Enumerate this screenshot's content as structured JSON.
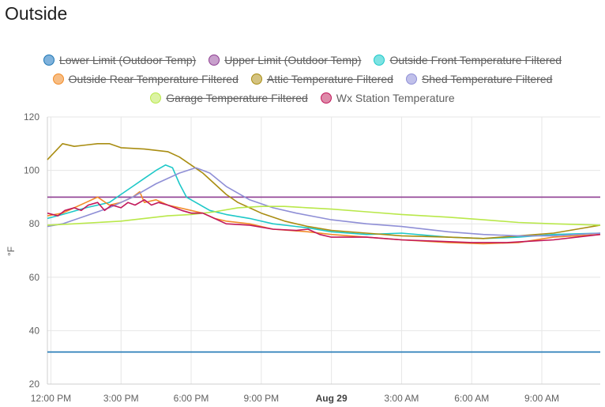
{
  "card": {
    "title": "Outside"
  },
  "chart_data": {
    "type": "line",
    "title": "Outside",
    "ylabel": "°F",
    "xlabel": "",
    "ylim": [
      20,
      120
    ],
    "y_ticks": [
      20,
      40,
      60,
      80,
      100,
      120
    ],
    "x_ticks": [
      {
        "label": "12:00 PM",
        "hour": 0,
        "bold": false
      },
      {
        "label": "3:00 PM",
        "hour": 3,
        "bold": false
      },
      {
        "label": "6:00 PM",
        "hour": 6,
        "bold": false
      },
      {
        "label": "9:00 PM",
        "hour": 9,
        "bold": false
      },
      {
        "label": "Aug 29",
        "hour": 12,
        "bold": true
      },
      {
        "label": "3:00 AM",
        "hour": 15,
        "bold": false
      },
      {
        "label": "6:00 AM",
        "hour": 18,
        "bold": false
      },
      {
        "label": "9:00 AM",
        "hour": 21,
        "bold": false
      }
    ],
    "x_range_hours": [
      -0.15,
      23.5
    ],
    "grid": true,
    "legend_position": "top",
    "series": [
      {
        "name": "Lower Limit (Outdoor Temp)",
        "color": "#1f77b4",
        "fill": "#7fb2dc",
        "hidden": true,
        "points": [
          [
            -0.15,
            32
          ],
          [
            23.5,
            32
          ]
        ]
      },
      {
        "name": "Upper Limit (Outdoor Temp)",
        "color": "#8e3d91",
        "fill": "#c8a0cc",
        "hidden": true,
        "points": [
          [
            -0.15,
            90
          ],
          [
            23.5,
            90
          ]
        ]
      },
      {
        "name": "Outside Front Temperature Filtered",
        "color": "#1ec8c8",
        "fill": "#7de3e3",
        "hidden": true,
        "points": [
          [
            -0.15,
            82
          ],
          [
            0.5,
            83.5
          ],
          [
            1.5,
            86
          ],
          [
            2.5,
            88
          ],
          [
            3.0,
            91
          ],
          [
            3.5,
            94
          ],
          [
            4.0,
            97
          ],
          [
            4.5,
            100
          ],
          [
            4.9,
            102
          ],
          [
            5.2,
            101
          ],
          [
            5.5,
            95
          ],
          [
            5.8,
            90
          ],
          [
            6.2,
            88
          ],
          [
            6.8,
            85
          ],
          [
            7.5,
            83.5
          ],
          [
            8.5,
            82
          ],
          [
            9.5,
            80
          ],
          [
            11.0,
            78.5
          ],
          [
            12.0,
            77
          ],
          [
            13.5,
            76
          ],
          [
            15.0,
            76.5
          ],
          [
            17.0,
            75
          ],
          [
            18.5,
            74.5
          ],
          [
            20.0,
            75
          ],
          [
            21.5,
            76
          ],
          [
            23.5,
            76.5
          ]
        ]
      },
      {
        "name": "Outside Rear Temperature Filtered",
        "color": "#f28c28",
        "fill": "#f7bd84",
        "hidden": true,
        "points": [
          [
            -0.15,
            83
          ],
          [
            0.5,
            84
          ],
          [
            1.0,
            86
          ],
          [
            1.5,
            88
          ],
          [
            2.0,
            90
          ],
          [
            2.5,
            87
          ],
          [
            3.0,
            88
          ],
          [
            3.5,
            90
          ],
          [
            3.8,
            92
          ],
          [
            4.0,
            88
          ],
          [
            4.5,
            89
          ],
          [
            5.0,
            87
          ],
          [
            5.5,
            86
          ],
          [
            6.0,
            85
          ],
          [
            6.5,
            84
          ],
          [
            7.0,
            82
          ],
          [
            7.5,
            81
          ],
          [
            8.5,
            80
          ],
          [
            9.5,
            78
          ],
          [
            11.0,
            77
          ],
          [
            12.0,
            76
          ],
          [
            13.5,
            75
          ],
          [
            15.0,
            74
          ],
          [
            17.0,
            73
          ],
          [
            18.5,
            72.5
          ],
          [
            20.0,
            73
          ],
          [
            21.5,
            75
          ],
          [
            23.5,
            76
          ]
        ]
      },
      {
        "name": "Attic Temperature Filtered",
        "color": "#a98d12",
        "fill": "#d4c381",
        "hidden": true,
        "points": [
          [
            -0.15,
            104
          ],
          [
            0.5,
            110
          ],
          [
            1.0,
            109
          ],
          [
            1.5,
            109.5
          ],
          [
            2.0,
            110
          ],
          [
            2.5,
            110
          ],
          [
            3.0,
            108.5
          ],
          [
            4.0,
            108
          ],
          [
            5.0,
            107
          ],
          [
            5.5,
            105
          ],
          [
            6.0,
            102
          ],
          [
            6.5,
            99
          ],
          [
            7.0,
            95
          ],
          [
            7.5,
            91
          ],
          [
            8.0,
            88
          ],
          [
            8.5,
            86
          ],
          [
            9.0,
            84
          ],
          [
            10.0,
            81
          ],
          [
            11.0,
            79
          ],
          [
            12.0,
            77.5
          ],
          [
            13.5,
            76.5
          ],
          [
            15.0,
            75.5
          ],
          [
            17.0,
            75
          ],
          [
            18.5,
            74.5
          ],
          [
            20.0,
            75.5
          ],
          [
            21.5,
            76.5
          ],
          [
            22.5,
            78
          ],
          [
            23.5,
            79.5
          ]
        ]
      },
      {
        "name": "Shed Temperature Filtered",
        "color": "#8f8fd6",
        "fill": "#c0c0ea",
        "hidden": true,
        "points": [
          [
            -0.15,
            79
          ],
          [
            0.5,
            80
          ],
          [
            1.5,
            83
          ],
          [
            2.5,
            86
          ],
          [
            3.5,
            90
          ],
          [
            4.5,
            95
          ],
          [
            5.5,
            99
          ],
          [
            6.2,
            101
          ],
          [
            6.8,
            99
          ],
          [
            7.5,
            94
          ],
          [
            8.5,
            89
          ],
          [
            9.5,
            86
          ],
          [
            10.5,
            84
          ],
          [
            12.0,
            81.5
          ],
          [
            13.5,
            80
          ],
          [
            15.0,
            79
          ],
          [
            17.0,
            77
          ],
          [
            18.5,
            76
          ],
          [
            20.0,
            75.5
          ],
          [
            21.5,
            75.5
          ],
          [
            23.5,
            76.5
          ]
        ]
      },
      {
        "name": "Garage Temperature Filtered",
        "color": "#b9e84a",
        "fill": "#dcf3a4",
        "hidden": true,
        "points": [
          [
            -0.15,
            79.5
          ],
          [
            1.0,
            80
          ],
          [
            2.0,
            80.5
          ],
          [
            3.0,
            81
          ],
          [
            4.0,
            82
          ],
          [
            5.0,
            83
          ],
          [
            6.0,
            83.5
          ],
          [
            7.0,
            84.5
          ],
          [
            8.0,
            86
          ],
          [
            9.0,
            86.5
          ],
          [
            10.0,
            86.5
          ],
          [
            11.0,
            86
          ],
          [
            12.0,
            85.5
          ],
          [
            13.5,
            84.5
          ],
          [
            15.0,
            83.5
          ],
          [
            17.0,
            82.5
          ],
          [
            18.5,
            81.5
          ],
          [
            20.0,
            80.5
          ],
          [
            21.5,
            80
          ],
          [
            23.5,
            79.5
          ]
        ]
      },
      {
        "name": "Wx Station Temperature",
        "color": "#c2185b",
        "fill": "#de8aa9",
        "hidden": false,
        "points": [
          [
            -0.15,
            84
          ],
          [
            0.3,
            83
          ],
          [
            0.6,
            85
          ],
          [
            1.0,
            86
          ],
          [
            1.3,
            85
          ],
          [
            1.6,
            87
          ],
          [
            2.0,
            88
          ],
          [
            2.3,
            85
          ],
          [
            2.6,
            87
          ],
          [
            3.0,
            86
          ],
          [
            3.3,
            88
          ],
          [
            3.6,
            87
          ],
          [
            4.0,
            89
          ],
          [
            4.3,
            87
          ],
          [
            4.6,
            88
          ],
          [
            5.0,
            87
          ],
          [
            5.3,
            86
          ],
          [
            5.6,
            85
          ],
          [
            6.0,
            84
          ],
          [
            6.5,
            84
          ],
          [
            7.0,
            82
          ],
          [
            7.5,
            80
          ],
          [
            8.5,
            79.5
          ],
          [
            9.5,
            78
          ],
          [
            10.5,
            77.5
          ],
          [
            11.0,
            78
          ],
          [
            11.5,
            76
          ],
          [
            12.0,
            75
          ],
          [
            13.5,
            75
          ],
          [
            15.0,
            74
          ],
          [
            16.5,
            73.5
          ],
          [
            18.0,
            73
          ],
          [
            19.5,
            73
          ],
          [
            20.5,
            73.5
          ],
          [
            21.5,
            74
          ],
          [
            22.5,
            75
          ],
          [
            23.5,
            76
          ]
        ]
      }
    ]
  }
}
